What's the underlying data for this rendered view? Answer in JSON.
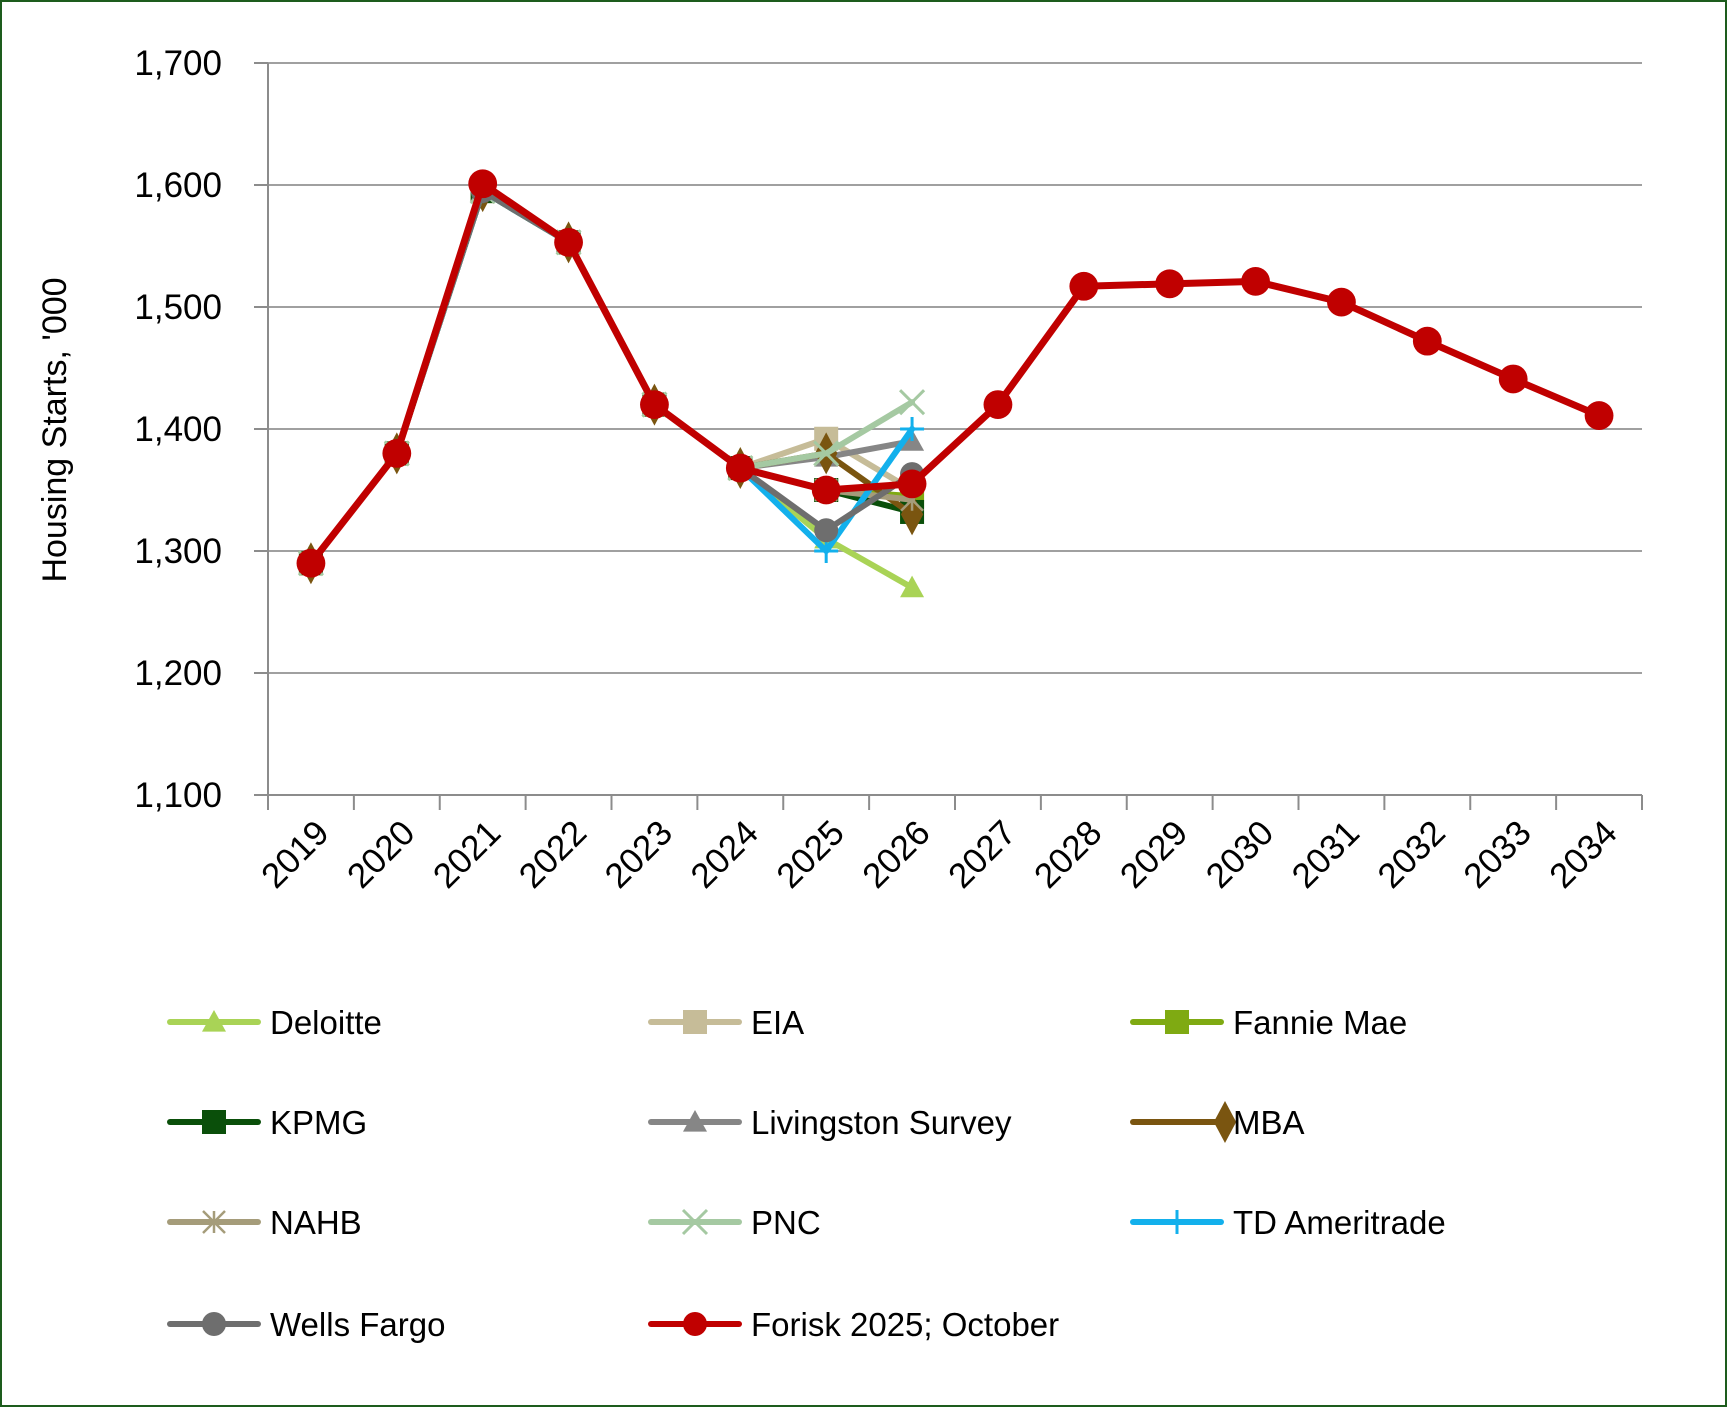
{
  "chart_data": {
    "type": "line",
    "title": "",
    "xlabel": "",
    "ylabel": "Housing Starts, '000",
    "ylim": [
      1100,
      1700
    ],
    "yticks": [
      1100,
      1200,
      1300,
      1400,
      1500,
      1600,
      1700
    ],
    "ytick_labels": [
      "1,100",
      "1,200",
      "1,300",
      "1,400",
      "1,500",
      "1,600",
      "1,700"
    ],
    "categories": [
      "2019",
      "2020",
      "2021",
      "2022",
      "2023",
      "2024",
      "2025",
      "2026",
      "2027",
      "2028",
      "2029",
      "2030",
      "2031",
      "2032",
      "2033",
      "2034"
    ],
    "grid": "horizontal",
    "legend_position": "bottom",
    "series": [
      {
        "name": "Deloitte",
        "color": "#a9d356",
        "marker": "triangle",
        "values": [
          1290,
          1380,
          1595,
          1553,
          1420,
          1368,
          1310,
          1270,
          null,
          null,
          null,
          null,
          null,
          null,
          null,
          null
        ]
      },
      {
        "name": "EIA",
        "color": "#c6bc98",
        "marker": "square",
        "values": [
          1290,
          1380,
          1595,
          1553,
          1420,
          1368,
          1392,
          1350,
          null,
          null,
          null,
          null,
          null,
          null,
          null,
          null
        ]
      },
      {
        "name": "Fannie Mae",
        "color": "#7faa12",
        "marker": "square",
        "values": [
          1290,
          1380,
          1595,
          1553,
          1420,
          1368,
          1350,
          1345,
          null,
          null,
          null,
          null,
          null,
          null,
          null,
          null
        ]
      },
      {
        "name": "KPMG",
        "color": "#0a4f0a",
        "marker": "square",
        "values": [
          1290,
          1380,
          1595,
          1553,
          1420,
          1368,
          1350,
          1332,
          null,
          null,
          null,
          null,
          null,
          null,
          null,
          null
        ]
      },
      {
        "name": "Livingston Survey",
        "color": "#868686",
        "marker": "triangle",
        "values": [
          1290,
          1380,
          1595,
          1553,
          1420,
          1368,
          1377,
          1390,
          null,
          null,
          null,
          null,
          null,
          null,
          null,
          null
        ]
      },
      {
        "name": "MBA",
        "color": "#7a5510",
        "marker": "diamond",
        "values": [
          1290,
          1380,
          1595,
          1553,
          1420,
          1368,
          1380,
          1330,
          null,
          null,
          null,
          null,
          null,
          null,
          null,
          null
        ]
      },
      {
        "name": "NAHB",
        "color": "#a59c7a",
        "marker": "asterisk",
        "values": [
          1290,
          1380,
          1595,
          1553,
          1420,
          1368,
          1350,
          1342,
          null,
          null,
          null,
          null,
          null,
          null,
          null,
          null
        ]
      },
      {
        "name": "PNC",
        "color": "#a5c9a2",
        "marker": "x",
        "values": [
          1290,
          1380,
          1595,
          1553,
          1420,
          1368,
          1380,
          1422,
          null,
          null,
          null,
          null,
          null,
          null,
          null,
          null
        ]
      },
      {
        "name": "TD Ameritrade",
        "color": "#13b0ec",
        "marker": "plus",
        "values": [
          1290,
          1380,
          1595,
          1553,
          1420,
          1368,
          1300,
          1400,
          null,
          null,
          null,
          null,
          null,
          null,
          null,
          null
        ]
      },
      {
        "name": "Wells Fargo",
        "color": "#6e6e6e",
        "marker": "circle",
        "values": [
          1290,
          1380,
          1595,
          1553,
          1420,
          1368,
          1317,
          1363,
          null,
          null,
          null,
          null,
          null,
          null,
          null,
          null
        ]
      },
      {
        "name": "Forisk 2025; October",
        "color": "#c00000",
        "marker": "circle",
        "values": [
          1290,
          1380,
          1601,
          1553,
          1420,
          1368,
          1350,
          1355,
          1420,
          1517,
          1519,
          1521,
          1504,
          1472,
          1441,
          1411
        ]
      }
    ]
  },
  "colors": {
    "frame_border": "#1d5c1d",
    "grid": "#a0a0a0",
    "axis": "#8c8c8c"
  }
}
